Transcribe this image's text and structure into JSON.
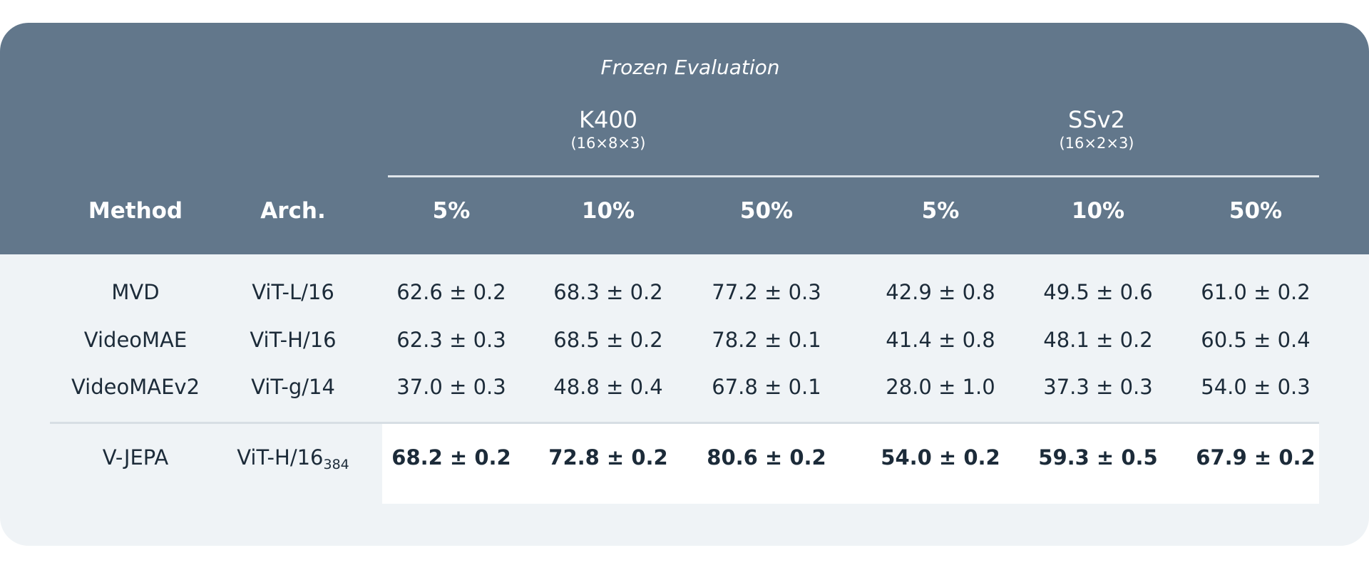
{
  "table": {
    "group_header": "Frozen Evaluation",
    "groups": [
      {
        "name": "K400",
        "sub": "(16×8×3)"
      },
      {
        "name": "SSv2",
        "sub": "(16×2×3)"
      }
    ],
    "columns": {
      "method": "Method",
      "arch": "Arch.",
      "splits": [
        "5%",
        "10%",
        "50%",
        "5%",
        "10%",
        "50%"
      ]
    },
    "rows": [
      {
        "method": "MVD",
        "arch": "ViT-L/16",
        "arch_sub": "",
        "values": [
          "62.6 ± 0.2",
          "68.3 ± 0.2",
          "77.2 ± 0.3",
          "42.9 ± 0.8",
          "49.5 ± 0.6",
          "61.0 ± 0.2"
        ]
      },
      {
        "method": "VideoMAE",
        "arch": "ViT-H/16",
        "arch_sub": "",
        "values": [
          "62.3 ± 0.3",
          "68.5 ± 0.2",
          "78.2 ± 0.1",
          "41.4 ± 0.8",
          "48.1 ± 0.2",
          "60.5 ± 0.4"
        ]
      },
      {
        "method": "VideoMAEv2",
        "arch": "ViT-g/14",
        "arch_sub": "",
        "values": [
          "37.0 ± 0.3",
          "48.8 ± 0.4",
          "67.8 ± 0.1",
          "28.0 ± 1.0",
          "37.3 ± 0.3",
          "54.0 ± 0.3"
        ]
      },
      {
        "method": "V-JEPA",
        "arch": "ViT-H/16",
        "arch_sub": "384",
        "values": [
          "68.2 ± 0.2",
          "72.8 ± 0.2",
          "80.6 ± 0.2",
          "54.0 ± 0.2",
          "59.3 ± 0.5",
          "67.9 ± 0.2"
        ]
      }
    ]
  },
  "colors": {
    "header_bg": "#62778b",
    "body_bg": "#eff3f6",
    "highlight_bg": "#ffffff",
    "text_dark": "#1c2b39"
  }
}
